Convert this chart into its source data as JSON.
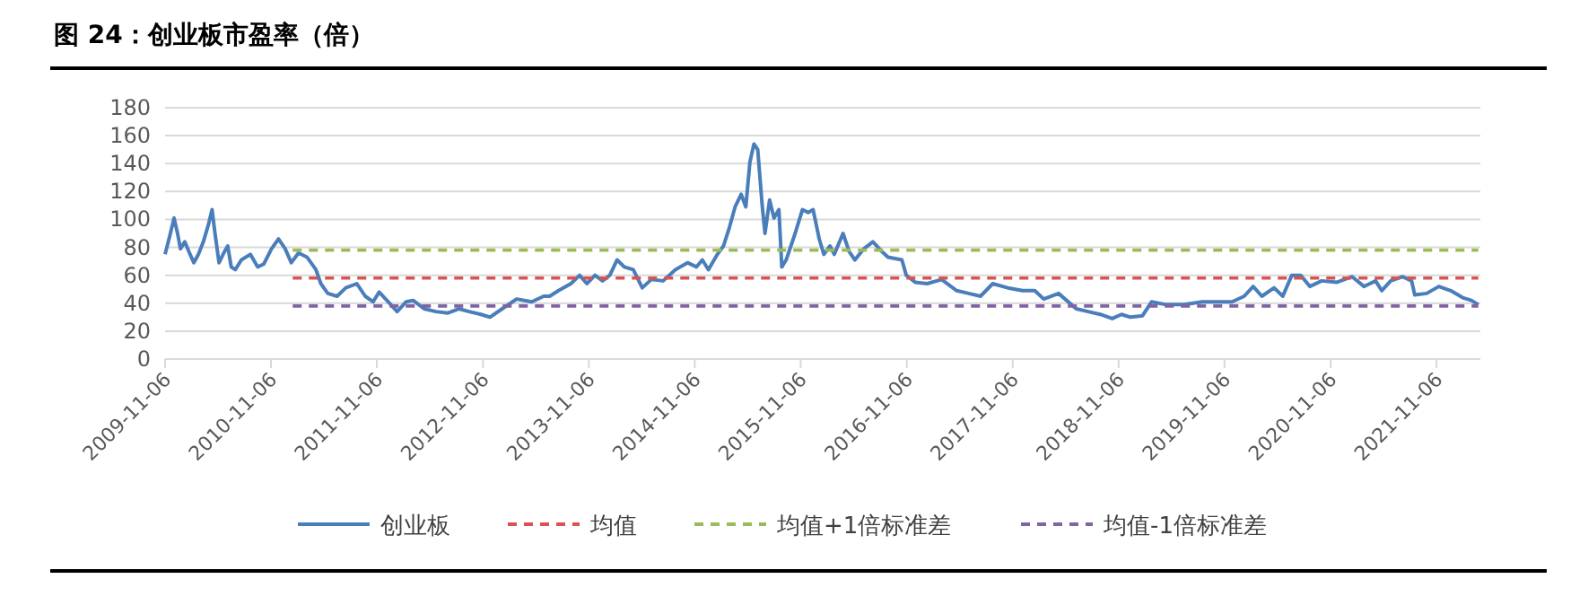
{
  "chart_data": {
    "type": "line",
    "title": "图 24：创业板市盈率（倍）",
    "legend": "bottom",
    "grid": "y",
    "xlim": [
      "2009-11-06",
      "2022-04-06"
    ],
    "xticks": [
      "2009-11-06",
      "2010-11-06",
      "2011-11-06",
      "2012-11-06",
      "2013-11-06",
      "2014-11-06",
      "2015-11-06",
      "2016-11-06",
      "2017-11-06",
      "2018-11-06",
      "2019-11-06",
      "2020-11-06",
      "2021-11-06"
    ],
    "ylim": [
      0,
      180
    ],
    "yticks": [
      0,
      20,
      40,
      60,
      80,
      100,
      120,
      140,
      160,
      180
    ],
    "series": [
      {
        "name": "创业板",
        "color": "#4a7ebb",
        "line_style": "solid",
        "x": [
          "2009-11-06",
          "2009-11-22",
          "2009-12-07",
          "2009-12-19",
          "2009-12-29",
          "2010-01-13",
          "2010-01-27",
          "2010-02-13",
          "2010-03-01",
          "2010-03-18",
          "2010-04-04",
          "2010-04-17",
          "2010-04-27",
          "2010-05-11",
          "2010-05-25",
          "2010-06-10",
          "2010-06-22",
          "2010-07-06",
          "2010-07-27",
          "2010-08-27",
          "2010-09-21",
          "2010-10-12",
          "2010-11-08",
          "2010-12-02",
          "2010-12-25",
          "2011-01-15",
          "2011-02-09",
          "2011-03-10",
          "2011-04-10",
          "2011-04-27",
          "2011-05-21",
          "2011-06-22",
          "2011-07-22",
          "2011-08-29",
          "2011-09-27",
          "2011-10-24",
          "2011-11-14",
          "2011-12-15",
          "2012-01-15",
          "2012-02-15",
          "2012-03-10",
          "2012-04-17",
          "2012-05-28",
          "2012-07-08",
          "2012-08-15",
          "2012-09-19",
          "2012-10-30",
          "2012-11-30",
          "2013-01-11",
          "2013-03-02",
          "2013-04-23",
          "2013-06-03",
          "2013-06-24",
          "2013-07-24",
          "2013-09-05",
          "2013-10-05",
          "2013-10-30",
          "2013-11-27",
          "2013-12-23",
          "2014-01-17",
          "2014-02-11",
          "2014-03-08",
          "2014-04-08",
          "2014-05-09",
          "2014-06-09",
          "2014-07-20",
          "2014-08-31",
          "2014-10-12",
          "2014-11-12",
          "2014-12-02",
          "2014-12-23",
          "2015-01-23",
          "2015-02-13",
          "2015-03-05",
          "2015-03-25",
          "2015-04-15",
          "2015-05-01",
          "2015-05-15",
          "2015-05-29",
          "2015-06-11",
          "2015-06-26",
          "2015-07-06",
          "2015-07-22",
          "2015-08-06",
          "2015-08-23",
          "2015-09-02",
          "2015-09-17",
          "2015-10-18",
          "2015-11-12",
          "2015-12-02",
          "2015-12-19",
          "2016-01-09",
          "2016-01-25",
          "2016-02-15",
          "2016-03-01",
          "2016-03-31",
          "2016-04-21",
          "2016-05-11",
          "2016-06-11",
          "2016-07-12",
          "2016-08-12",
          "2016-09-02",
          "2016-10-20",
          "2016-11-04",
          "2016-12-05",
          "2017-01-15",
          "2017-03-06",
          "2017-04-27",
          "2017-06-07",
          "2017-07-18",
          "2017-08-29",
          "2017-10-20",
          "2017-12-10",
          "2018-01-21",
          "2018-02-21",
          "2018-04-13",
          "2018-06-13",
          "2018-07-24",
          "2018-09-04",
          "2018-10-15",
          "2018-11-16",
          "2018-12-17",
          "2019-01-27",
          "2019-02-28",
          "2019-04-19",
          "2019-06-20",
          "2019-08-21",
          "2019-10-22",
          "2019-12-02",
          "2020-01-13",
          "2020-02-13",
          "2020-03-14",
          "2020-04-25",
          "2020-05-25",
          "2020-06-25",
          "2020-07-26",
          "2020-08-26",
          "2020-10-06",
          "2020-11-28",
          "2021-01-19",
          "2021-03-01",
          "2021-04-10",
          "2021-05-01",
          "2021-06-01",
          "2021-07-12",
          "2021-08-12",
          "2021-08-23",
          "2021-10-03",
          "2021-11-14",
          "2021-12-25",
          "2022-02-04",
          "2022-03-06",
          "2022-03-30"
        ],
        "values": [
          75,
          88,
          101,
          90,
          79,
          84,
          77,
          69,
          75,
          84,
          96,
          107,
          90,
          69,
          75,
          81,
          66,
          64,
          71,
          75,
          66,
          68,
          79,
          86,
          79,
          69,
          76,
          73,
          64,
          54,
          47,
          45,
          51,
          54,
          45,
          41,
          48,
          41,
          34,
          41,
          42,
          36,
          34,
          33,
          36,
          34,
          32,
          30,
          36,
          43,
          41,
          45,
          45,
          49,
          54,
          60,
          54,
          60,
          56,
          60,
          71,
          66,
          64,
          51,
          57,
          56,
          64,
          69,
          66,
          71,
          64,
          75,
          81,
          94,
          109,
          118,
          109,
          141,
          154,
          150,
          111,
          90,
          114,
          101,
          107,
          66,
          71,
          90,
          107,
          105,
          107,
          86,
          75,
          81,
          75,
          90,
          77,
          71,
          79,
          84,
          77,
          73,
          71,
          60,
          55,
          54,
          57,
          49,
          47,
          45,
          54,
          51,
          49,
          49,
          43,
          47,
          36,
          34,
          32,
          29,
          32,
          30,
          31,
          41,
          39,
          39,
          41,
          41,
          41,
          45,
          52,
          45,
          51,
          45,
          60,
          60,
          52,
          56,
          55,
          59,
          52,
          56,
          49,
          56,
          59,
          56,
          46,
          47,
          52,
          49,
          44,
          42,
          39
        ]
      },
      {
        "name": "均值",
        "color": "#d9534f",
        "line_style": "dashed",
        "x": [
          "2011-01-20",
          "2022-03-30"
        ],
        "values": [
          58,
          58
        ]
      },
      {
        "name": "均值+1倍标准差",
        "color": "#9bbb59",
        "line_style": "dashed",
        "x": [
          "2011-01-20",
          "2022-03-30"
        ],
        "values": [
          78,
          78
        ]
      },
      {
        "name": "均值-1倍标准差",
        "color": "#8064a2",
        "line_style": "dashed",
        "x": [
          "2011-01-20",
          "2022-03-30"
        ],
        "values": [
          38,
          38
        ]
      }
    ]
  }
}
